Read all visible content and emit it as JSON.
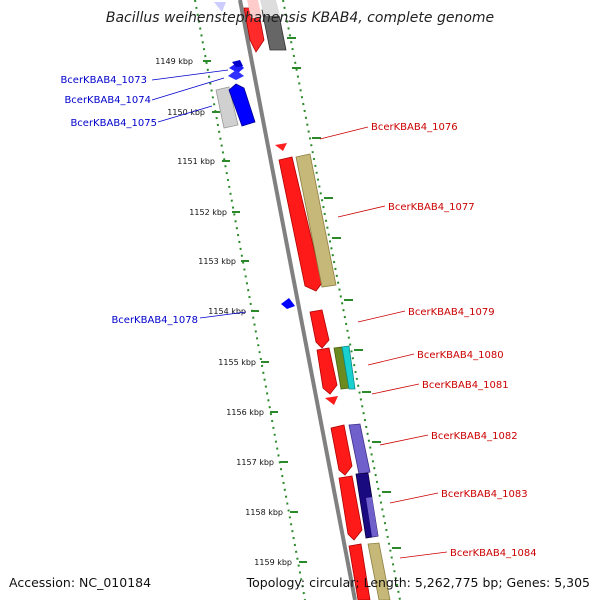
{
  "title": "Bacillus weihenstephanensis KBAB4, complete genome",
  "footer": {
    "accession": "Accession: NC_010184",
    "summary": "Topology: circular; Length: 5,262,775 bp; Genes: 5,305"
  },
  "ticks": [
    "1149 kbp",
    "1150 kbp",
    "1151 kbp",
    "1152 kbp",
    "1153 kbp",
    "1154 kbp",
    "1155 kbp",
    "1156 kbp",
    "1157 kbp",
    "1158 kbp",
    "1159 kbp"
  ],
  "genes": [
    {
      "label": "BcerKBAB4_1073",
      "strand": "minus",
      "color": "#0000cc"
    },
    {
      "label": "BcerKBAB4_1074",
      "strand": "minus",
      "color": "#0000cc"
    },
    {
      "label": "BcerKBAB4_1075",
      "strand": "minus",
      "color": "#0000cc"
    },
    {
      "label": "BcerKBAB4_1076",
      "strand": "plus",
      "color": "#cc0000"
    },
    {
      "label": "BcerKBAB4_1077",
      "strand": "plus",
      "color": "#cc0000"
    },
    {
      "label": "BcerKBAB4_1078",
      "strand": "minus",
      "color": "#0000cc"
    },
    {
      "label": "BcerKBAB4_1079",
      "strand": "plus",
      "color": "#cc0000"
    },
    {
      "label": "BcerKBAB4_1080",
      "strand": "plus",
      "color": "#cc0000"
    },
    {
      "label": "BcerKBAB4_1081",
      "strand": "plus",
      "color": "#cc0000"
    },
    {
      "label": "BcerKBAB4_1082",
      "strand": "plus",
      "color": "#cc0000"
    },
    {
      "label": "BcerKBAB4_1083",
      "strand": "plus",
      "color": "#cc0000"
    },
    {
      "label": "BcerKBAB4_1084",
      "strand": "plus",
      "color": "#cc0000"
    }
  ]
}
